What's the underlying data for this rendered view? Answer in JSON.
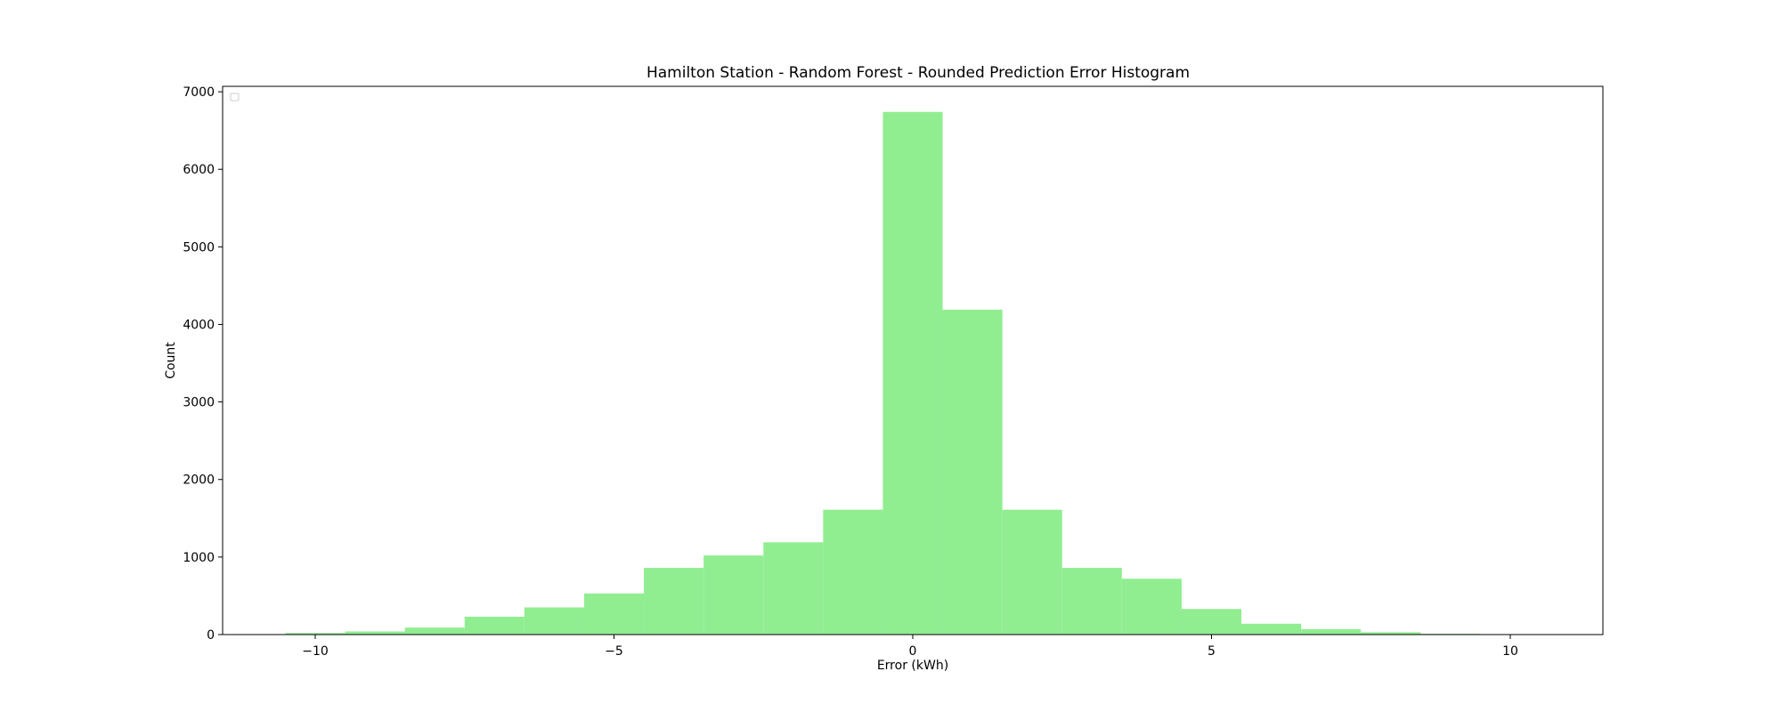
{
  "chart_data": {
    "type": "bar",
    "title": "Hamilton Station - Random Forest - Rounded Prediction Error Histogram",
    "xlabel": "Error (kWh)",
    "ylabel": "Count",
    "bin_width": 1,
    "x": [
      -10,
      -9,
      -8,
      -7,
      -6,
      -5,
      -4,
      -3,
      -2,
      -1,
      0,
      1,
      2,
      3,
      4,
      5,
      6,
      7,
      8,
      9
    ],
    "values": [
      20,
      40,
      90,
      230,
      350,
      530,
      860,
      1020,
      1190,
      1610,
      6740,
      4190,
      1610,
      860,
      720,
      330,
      140,
      70,
      30,
      10
    ],
    "xlim": [
      -11.55,
      11.55
    ],
    "ylim": [
      0,
      7070
    ],
    "xticks": [
      -10,
      -5,
      0,
      5,
      10
    ],
    "xtick_labels": [
      "−10",
      "−5",
      "0",
      "5",
      "10"
    ],
    "yticks": [
      0,
      1000,
      2000,
      3000,
      4000,
      5000,
      6000,
      7000
    ],
    "ytick_labels": [
      "0",
      "1000",
      "2000",
      "3000",
      "4000",
      "5000",
      "6000",
      "7000"
    ],
    "bar_color": "#90ee90",
    "grid": false,
    "legend": "top-left (empty)"
  }
}
